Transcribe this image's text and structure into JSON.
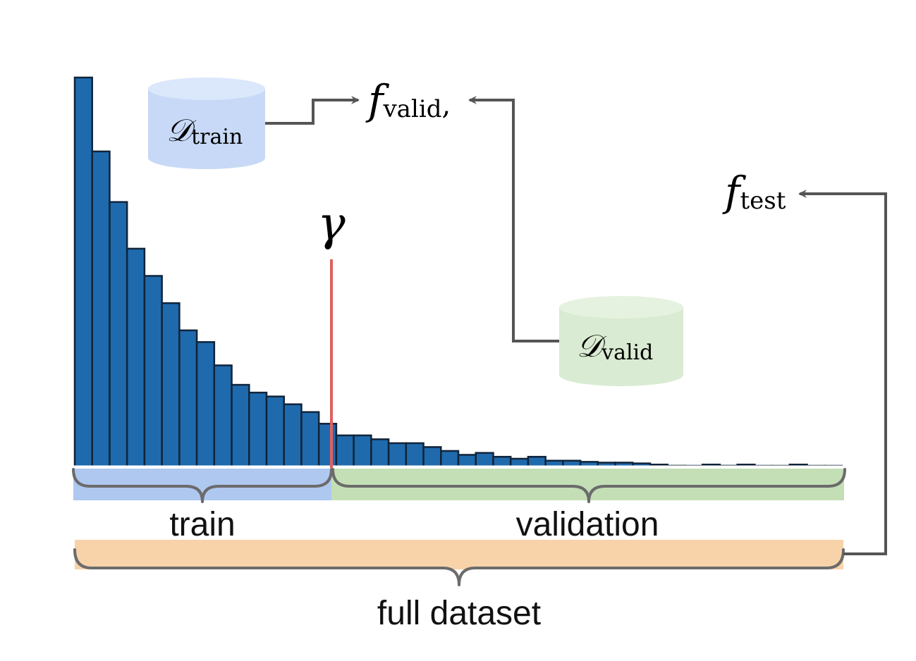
{
  "labels": {
    "train": "train",
    "validation": "validation",
    "full_dataset": "full dataset",
    "gamma": "γ",
    "d_train_main": "𝒟",
    "d_train_sub": "train",
    "d_valid_main": "𝒟",
    "d_valid_sub": "valid",
    "f_valid_main": "f",
    "f_valid_sub": "valid",
    "f_valid_comma": ",",
    "f_test_main": "f",
    "f_test_sub": "test"
  },
  "colors": {
    "bar": "#1f6aad",
    "bar_stroke": "#10243a",
    "threshold": "#e06060",
    "train_band": "#aec8f0",
    "valid_band": "#c4dfb6",
    "full_band": "#f8d3aa",
    "arrow": "#555555",
    "brace": "#6b6b6b",
    "d_train": "#c7d9f6",
    "d_valid": "#d9ebd2"
  },
  "chart_data": {
    "type": "bar",
    "description_units": "relative frequency (first bar = 1.0)",
    "values": [
      1.0,
      0.81,
      0.68,
      0.56,
      0.49,
      0.42,
      0.35,
      0.32,
      0.26,
      0.21,
      0.19,
      0.18,
      0.16,
      0.14,
      0.11,
      0.08,
      0.08,
      0.07,
      0.06,
      0.06,
      0.05,
      0.04,
      0.03,
      0.035,
      0.025,
      0.02,
      0.025,
      0.015,
      0.015,
      0.012,
      0.01,
      0.01,
      0.008,
      0.005,
      0.002,
      0.001,
      0.005,
      0.002,
      0.005,
      0.001,
      0.001,
      0.005,
      0.001,
      0.001
    ],
    "threshold_index": 15,
    "threshold_label": "γ"
  }
}
